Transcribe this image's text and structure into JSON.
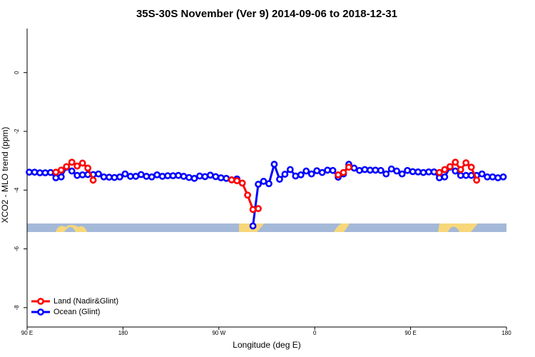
{
  "chart_data": {
    "type": "line",
    "title": "35S-30S November (Ver 9)   2014-09-06 to 2018-12-31",
    "x_label": "Longitude (deg E)",
    "y_label": "XCO2 - MLO trend (ppm)",
    "x": [
      92,
      97,
      102,
      107,
      112,
      117,
      122,
      127,
      132,
      137,
      142,
      147,
      152,
      157,
      162,
      167,
      172,
      177,
      182,
      187,
      192,
      197,
      202,
      207,
      212,
      217,
      222,
      227,
      232,
      237,
      242,
      247,
      252,
      257,
      262,
      267,
      272,
      277,
      282,
      287,
      292,
      297,
      302,
      307,
      312,
      317,
      322,
      327,
      332,
      337,
      342,
      347,
      352,
      357,
      362,
      367,
      372,
      377,
      382,
      387,
      392,
      397,
      402,
      407,
      412,
      417,
      422,
      427,
      432,
      437,
      442,
      447,
      452,
      457,
      462,
      467,
      472,
      477,
      482,
      487,
      492,
      497,
      502,
      507,
      512,
      517,
      522,
      527,
      532,
      537
    ],
    "series": [
      {
        "name": "Ocean (Glint)",
        "color": "#0000ff",
        "values": [
          -3.39,
          -3.39,
          -3.41,
          -3.41,
          -3.4,
          -3.58,
          -3.55,
          -3.22,
          -3.35,
          -3.5,
          -3.48,
          -3.47,
          -3.47,
          -3.45,
          -3.55,
          -3.56,
          -3.57,
          -3.55,
          -3.45,
          -3.53,
          -3.53,
          -3.47,
          -3.53,
          -3.55,
          -3.48,
          -3.53,
          -3.51,
          -3.51,
          -3.5,
          -3.53,
          -3.57,
          -3.6,
          -3.52,
          -3.54,
          -3.49,
          -3.54,
          -3.58,
          -3.6,
          -3.65,
          -3.62,
          null,
          null,
          -5.22,
          -3.8,
          -3.7,
          -3.78,
          -3.12,
          -3.63,
          -3.46,
          -3.3,
          -3.52,
          -3.48,
          -3.35,
          -3.45,
          -3.34,
          -3.4,
          -3.32,
          -3.33,
          -3.56,
          -3.45,
          -3.12,
          -3.25,
          -3.33,
          -3.3,
          -3.32,
          -3.32,
          -3.33,
          -3.45,
          -3.28,
          -3.35,
          -3.45,
          -3.33,
          -3.37,
          -3.38,
          -3.4,
          -3.38,
          -3.38,
          -3.58,
          -3.55,
          -3.22,
          -3.35,
          -3.5,
          -3.5,
          -3.5,
          -3.5,
          -3.45,
          -3.55,
          -3.55,
          -3.58,
          -3.55
        ]
      },
      {
        "name": "Land (Nadir&Glint)",
        "color": "#ff0000",
        "values": [
          null,
          null,
          null,
          null,
          null,
          -3.39,
          -3.32,
          -3.2,
          -3.05,
          -3.18,
          -3.08,
          -3.25,
          -3.66,
          null,
          null,
          null,
          null,
          null,
          null,
          null,
          null,
          null,
          null,
          null,
          null,
          null,
          null,
          null,
          null,
          null,
          null,
          null,
          null,
          null,
          null,
          null,
          null,
          null,
          -3.65,
          -3.68,
          -3.76,
          -4.17,
          -4.66,
          -4.63,
          null,
          null,
          null,
          null,
          null,
          null,
          null,
          null,
          null,
          null,
          null,
          null,
          null,
          null,
          -3.48,
          -3.4,
          -3.22,
          null,
          null,
          null,
          null,
          null,
          null,
          null,
          null,
          null,
          null,
          null,
          null,
          null,
          null,
          null,
          null,
          -3.4,
          -3.3,
          -3.2,
          -3.05,
          -3.3,
          -3.07,
          -3.22,
          -3.66,
          null,
          null,
          null,
          null,
          null
        ]
      }
    ],
    "legend_order": [
      "Land (Nadir&Glint)",
      "Ocean (Glint)"
    ],
    "xlim": [
      90,
      540
    ],
    "xticks": [
      {
        "value": 90,
        "label": "90 E"
      },
      180,
      {
        "value": 270,
        "label": "90 W"
      },
      {
        "value": 360,
        "label": "0"
      },
      {
        "value": 450,
        "label": "90 E"
      },
      {
        "value": 540,
        "label": "180"
      }
    ],
    "ylim": [
      -8.66,
      1.5
    ],
    "yticks": [
      0,
      -2,
      -4,
      -6,
      -8
    ],
    "legend": "bottom left"
  }
}
